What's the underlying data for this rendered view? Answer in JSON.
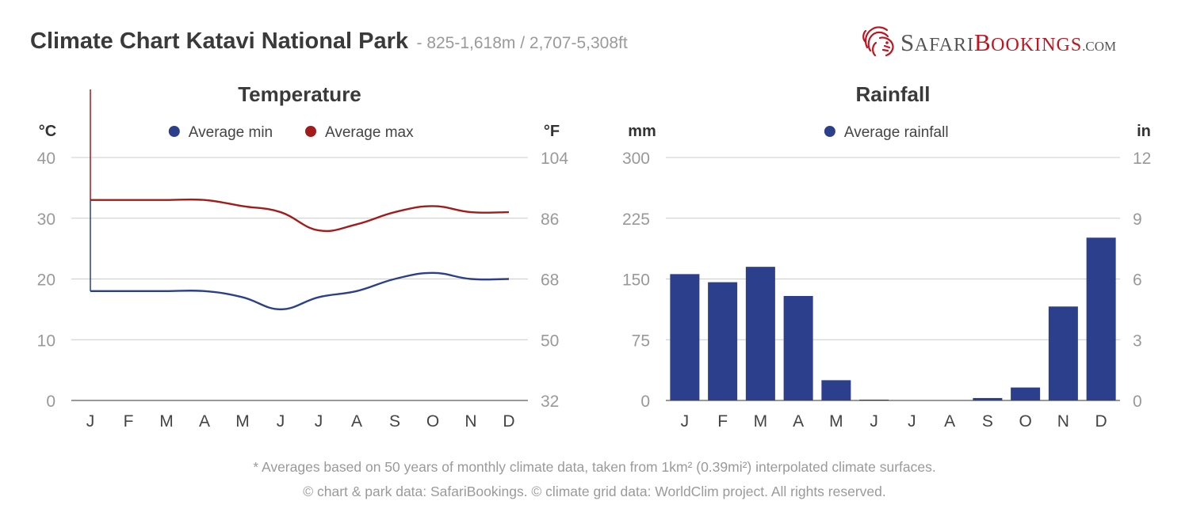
{
  "header": {
    "title": "Climate Chart Katavi National Park",
    "subtitle": "- 825-1,618m / 2,707-5,308ft"
  },
  "logo": {
    "brand_part1_initial": "S",
    "brand_part1_rest": "AFARI",
    "brand_part2_initial": "B",
    "brand_part2_rest": "OOKINGS",
    "brand_suffix": ".COM",
    "icon": "lion-head-icon",
    "accent_color": "#c01520"
  },
  "footer": {
    "line1": "* Averages based on 50 years of monthly climate data, taken from 1km² (0.39mi²) interpolated climate surfaces.",
    "line2": "© chart & park data: SafariBookings. © climate grid data: WorldClim project. All rights reserved."
  },
  "chart_data": [
    {
      "type": "line",
      "title": "Temperature",
      "y_left_unit": "°C",
      "y_right_unit": "°F",
      "categories": [
        "J",
        "F",
        "M",
        "A",
        "M",
        "J",
        "J",
        "A",
        "S",
        "O",
        "N",
        "D"
      ],
      "ylim": [
        0,
        40
      ],
      "yticks_left": [
        "0",
        "10",
        "20",
        "30",
        "40"
      ],
      "yticks_right": [
        "32",
        "50",
        "68",
        "86",
        "104"
      ],
      "grid": true,
      "legend_position": "top",
      "series": [
        {
          "name": "Average min",
          "color": "#2b3f8c",
          "values": [
            18,
            18,
            18,
            18,
            17,
            15,
            17,
            18,
            20,
            21,
            20,
            20
          ]
        },
        {
          "name": "Average max",
          "color": "#a31b1b",
          "values": [
            33,
            33,
            33,
            33,
            32,
            31,
            28,
            29,
            31,
            32,
            31,
            31
          ]
        }
      ]
    },
    {
      "type": "bar",
      "title": "Rainfall",
      "y_left_unit": "mm",
      "y_right_unit": "in",
      "categories": [
        "J",
        "F",
        "M",
        "A",
        "M",
        "J",
        "J",
        "A",
        "S",
        "O",
        "N",
        "D"
      ],
      "ylim": [
        0,
        300
      ],
      "yticks_left": [
        "0",
        "75",
        "150",
        "225",
        "300"
      ],
      "yticks_right": [
        "0",
        "3",
        "6",
        "9",
        "12"
      ],
      "grid": true,
      "legend_position": "top",
      "series": [
        {
          "name": "Average rainfall",
          "color": "#2b3f8c",
          "values": [
            156,
            146,
            165,
            129,
            25,
            1,
            0,
            0,
            3,
            16,
            116,
            201
          ]
        }
      ]
    }
  ]
}
